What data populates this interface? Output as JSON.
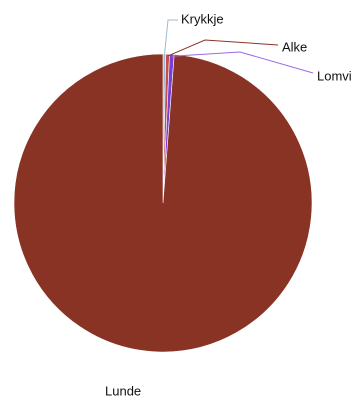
{
  "chart_data": {
    "type": "pie",
    "title": "",
    "slices": [
      {
        "label": "Krykkje",
        "value": 0.3,
        "color": "#9FB8D6",
        "leader_color": "#9FB8D6"
      },
      {
        "label": "Alke",
        "value": 0.4,
        "color": "#C0504D",
        "leader_color": "#8A3328"
      },
      {
        "label": "Lomvi",
        "value": 0.5,
        "color": "#7B3FD6",
        "leader_color": "#9B6AE6"
      },
      {
        "label": "Lunde",
        "value": 98.8,
        "color": "#893325",
        "leader_color": "#893325"
      }
    ],
    "start_angle_deg": 0,
    "direction": "clockwise",
    "legend": "none",
    "labels": "outside with leader lines"
  }
}
